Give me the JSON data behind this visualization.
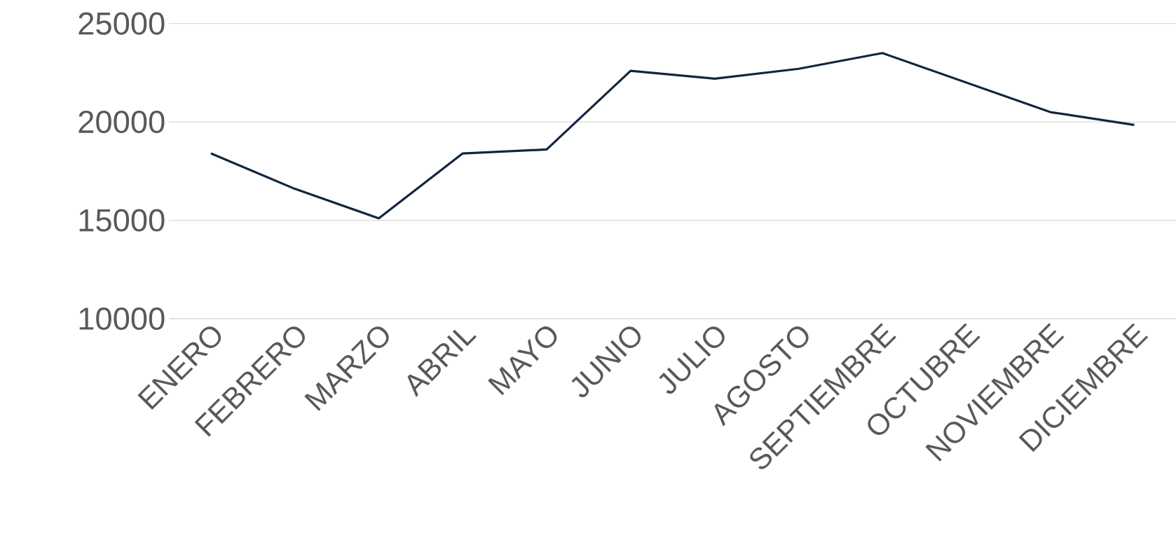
{
  "chart_data": {
    "type": "line",
    "categories": [
      "ENERO",
      "FEBRERO",
      "MARZO",
      "ABRIL",
      "MAYO",
      "JUNIO",
      "JULIO",
      "AGOSTO",
      "SEPTIEMBRE",
      "OCTUBRE",
      "NOVIEMBRE",
      "DICIEMBRE"
    ],
    "values": [
      18400,
      16600,
      15100,
      18400,
      18600,
      22600,
      22200,
      22700,
      23500,
      22000,
      20500,
      19850
    ],
    "color": "#12263f",
    "ylim": [
      10000,
      25000
    ],
    "yticks": [
      10000,
      15000,
      20000,
      25000
    ],
    "grid": "y",
    "marker": "none",
    "line_style": "solid"
  }
}
